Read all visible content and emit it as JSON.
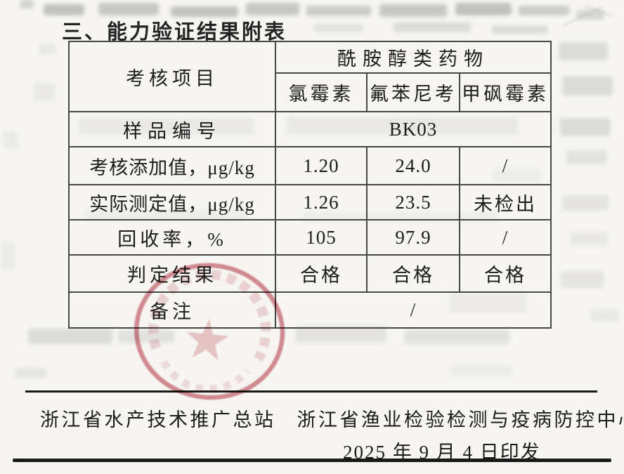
{
  "document": {
    "title": "三、能力验证结果附表"
  },
  "table": {
    "corner_label": "考核项目",
    "group_header": "酰胺醇类药物",
    "analytes": [
      "氯霉素",
      "氟苯尼考",
      "甲砜霉素"
    ],
    "rows": [
      {
        "label": "样品编号",
        "span_value": "BK03"
      },
      {
        "label": "考核添加值，μg/kg",
        "values": [
          "1.20",
          "24.0",
          "/"
        ]
      },
      {
        "label": "实际测定值，μg/kg",
        "values": [
          "1.26",
          "23.5",
          "未检出"
        ]
      },
      {
        "label": "回收率，%",
        "values": [
          "105",
          "97.9",
          "/"
        ]
      },
      {
        "label": "判定结果",
        "values": [
          "合格",
          "合格",
          "合格"
        ]
      },
      {
        "label": "备注",
        "span_value": "/"
      }
    ]
  },
  "footer": {
    "issuer_left": "浙江省水产技术推广总站",
    "issuer_right": "浙江省渔业检验检测与疫病防控中心",
    "issue_date": "2025 年 9 月 4 日印发"
  },
  "seal": {
    "ring_color": "#c9646f",
    "star_color": "#dc939b"
  }
}
